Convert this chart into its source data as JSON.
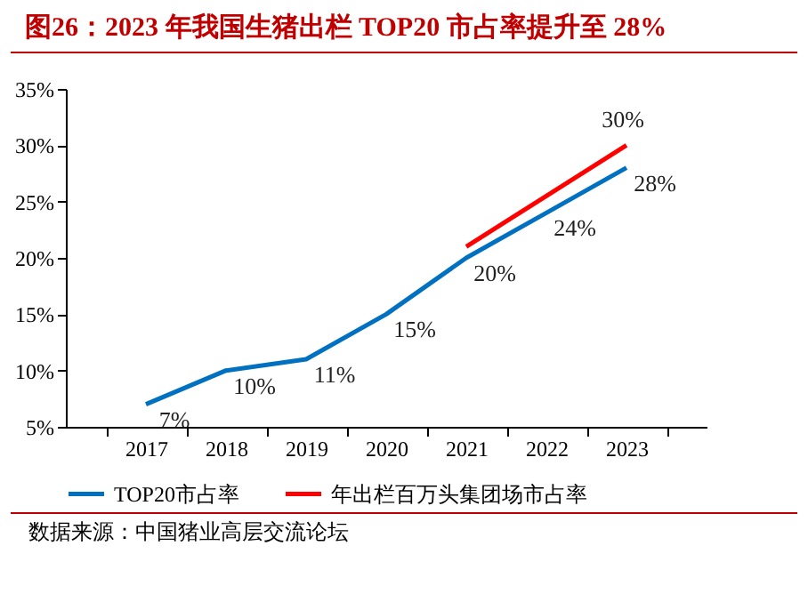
{
  "chart_data": {
    "type": "line",
    "title": "图26：2023 年我国生猪出栏 TOP20 市占率提升至 28%",
    "categories": [
      "2017",
      "2018",
      "2019",
      "2020",
      "2021",
      "2022",
      "2023"
    ],
    "series": [
      {
        "name": "TOP20市占率",
        "color": "#0070c0",
        "values": [
          7,
          10,
          11,
          15,
          20,
          24,
          28
        ],
        "value_labels": [
          "7%",
          "10%",
          "11%",
          "15%",
          "20%",
          "24%",
          "28%"
        ]
      },
      {
        "name": "年出栏百万头集团场市占率",
        "color": "#ff0000",
        "values": [
          null,
          null,
          null,
          null,
          21,
          25.5,
          30
        ],
        "value_labels": [
          null,
          null,
          null,
          null,
          null,
          null,
          "30%"
        ]
      }
    ],
    "ylim": [
      5,
      35
    ],
    "yticks": [
      {
        "value": 5,
        "label": "5%"
      },
      {
        "value": 10,
        "label": "10%"
      },
      {
        "value": 15,
        "label": "15%"
      },
      {
        "value": 20,
        "label": "20%"
      },
      {
        "value": 25,
        "label": "25%"
      },
      {
        "value": 30,
        "label": "30%"
      },
      {
        "value": 35,
        "label": "35%"
      }
    ],
    "grid": false,
    "legend": "bottom",
    "marker": "none",
    "line_style": "solid",
    "annotations": [
      "数据来源：中国猪业高层交流论坛"
    ]
  }
}
